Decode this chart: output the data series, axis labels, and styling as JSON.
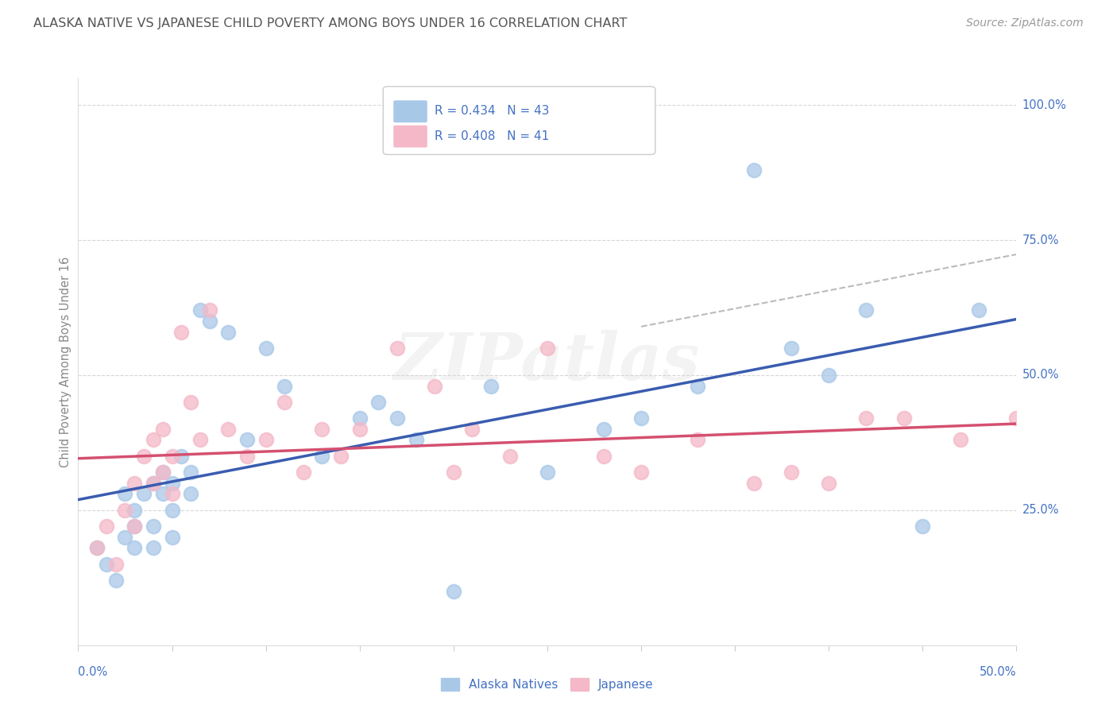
{
  "title": "ALASKA NATIVE VS JAPANESE CHILD POVERTY AMONG BOYS UNDER 16 CORRELATION CHART",
  "source": "Source: ZipAtlas.com",
  "ylabel": "Child Poverty Among Boys Under 16",
  "legend_alaska": "Alaska Natives",
  "legend_japanese": "Japanese",
  "r_alaska": 0.434,
  "n_alaska": 43,
  "r_japanese": 0.408,
  "n_japanese": 41,
  "alaska_color": "#a8c8e8",
  "japanese_color": "#f4b8c8",
  "trend_alaska_color": "#3a5cb0",
  "trend_japanese_color": "#d45070",
  "dashed_color": "#aaaaaa",
  "background_color": "#ffffff",
  "grid_color": "#cccccc",
  "title_color": "#555555",
  "axis_label_color": "#4472c4",
  "watermark_text": "ZIPatlas",
  "alaska_points_x": [
    0.01,
    0.015,
    0.02,
    0.025,
    0.025,
    0.03,
    0.03,
    0.03,
    0.035,
    0.04,
    0.04,
    0.04,
    0.045,
    0.045,
    0.05,
    0.05,
    0.05,
    0.055,
    0.06,
    0.06,
    0.065,
    0.07,
    0.08,
    0.09,
    0.1,
    0.11,
    0.13,
    0.15,
    0.16,
    0.17,
    0.18,
    0.2,
    0.22,
    0.25,
    0.28,
    0.3,
    0.33,
    0.36,
    0.38,
    0.4,
    0.42,
    0.45,
    0.48
  ],
  "alaska_points_y": [
    0.18,
    0.15,
    0.12,
    0.2,
    0.28,
    0.22,
    0.25,
    0.18,
    0.28,
    0.3,
    0.22,
    0.18,
    0.28,
    0.32,
    0.3,
    0.25,
    0.2,
    0.35,
    0.32,
    0.28,
    0.62,
    0.6,
    0.58,
    0.38,
    0.55,
    0.48,
    0.35,
    0.42,
    0.45,
    0.42,
    0.38,
    0.1,
    0.48,
    0.32,
    0.4,
    0.42,
    0.48,
    0.88,
    0.55,
    0.5,
    0.62,
    0.22,
    0.62
  ],
  "japanese_points_x": [
    0.01,
    0.015,
    0.02,
    0.025,
    0.03,
    0.03,
    0.035,
    0.04,
    0.04,
    0.045,
    0.045,
    0.05,
    0.05,
    0.055,
    0.06,
    0.065,
    0.07,
    0.08,
    0.09,
    0.1,
    0.11,
    0.12,
    0.13,
    0.14,
    0.15,
    0.17,
    0.19,
    0.2,
    0.21,
    0.23,
    0.25,
    0.28,
    0.3,
    0.33,
    0.36,
    0.38,
    0.4,
    0.42,
    0.44,
    0.47,
    0.5
  ],
  "japanese_points_y": [
    0.18,
    0.22,
    0.15,
    0.25,
    0.3,
    0.22,
    0.35,
    0.3,
    0.38,
    0.32,
    0.4,
    0.35,
    0.28,
    0.58,
    0.45,
    0.38,
    0.62,
    0.4,
    0.35,
    0.38,
    0.45,
    0.32,
    0.4,
    0.35,
    0.4,
    0.55,
    0.48,
    0.32,
    0.4,
    0.35,
    0.55,
    0.35,
    0.32,
    0.38,
    0.3,
    0.32,
    0.3,
    0.42,
    0.42,
    0.38,
    0.42
  ]
}
